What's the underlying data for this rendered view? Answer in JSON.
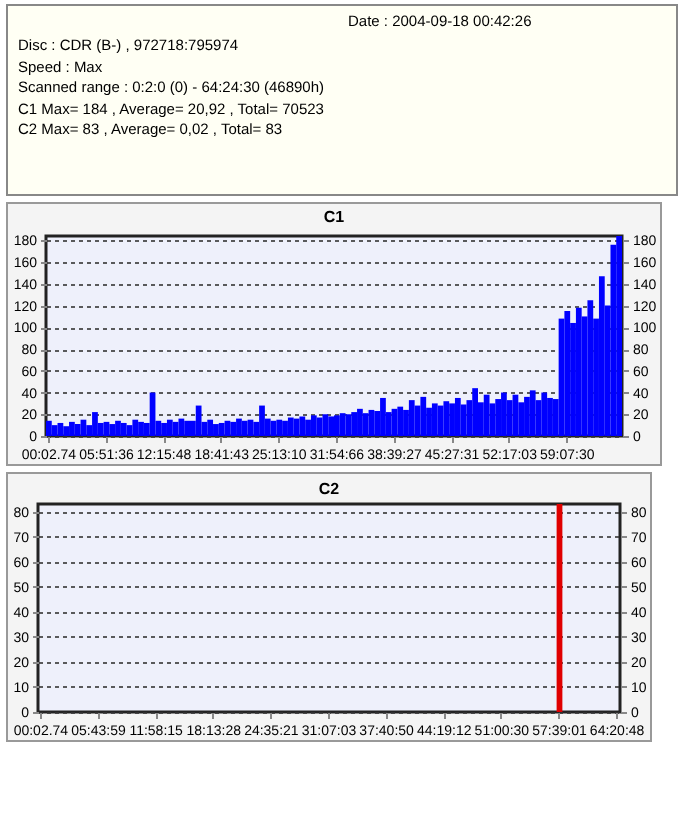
{
  "chart_data": [
    {
      "type": "bar",
      "title": "C1",
      "annotations": [
        "Date : 2004-09-18 00:42:26",
        "Disc : CDR (B-) , 972718:795974",
        "Speed : Max",
        "Scanned range : 0:2:0 (0) - 64:24:30 (46890h)",
        "C1 Max= 184 , Average= 20,92 , Total= 70523",
        "C2 Max= 83 , Average= 0,02 , Total= 83"
      ],
      "categories": [
        "00:02.74",
        null,
        null,
        null,
        null,
        null,
        null,
        null,
        null,
        null,
        "05:51:36",
        null,
        null,
        null,
        null,
        null,
        null,
        null,
        null,
        null,
        "12:15:48",
        null,
        null,
        null,
        null,
        null,
        null,
        null,
        null,
        null,
        "18:41:43",
        null,
        null,
        null,
        null,
        null,
        null,
        null,
        null,
        null,
        "25:13:10",
        null,
        null,
        null,
        null,
        null,
        null,
        null,
        null,
        null,
        "31:54:66",
        null,
        null,
        null,
        null,
        null,
        null,
        null,
        null,
        null,
        "38:39:27",
        null,
        null,
        null,
        null,
        null,
        null,
        null,
        null,
        null,
        "45:27:31",
        null,
        null,
        null,
        null,
        null,
        null,
        null,
        null,
        null,
        "52:17:03",
        null,
        null,
        null,
        null,
        null,
        null,
        null,
        null,
        null,
        "59:07:30",
        null,
        null,
        null,
        null,
        null,
        null,
        null,
        null,
        null
      ],
      "values": [
        14,
        10,
        12,
        9,
        13,
        11,
        15,
        10,
        22,
        12,
        13,
        11,
        14,
        12,
        10,
        15,
        13,
        12,
        40,
        14,
        12,
        15,
        13,
        16,
        14,
        14,
        28,
        13,
        15,
        11,
        12,
        14,
        13,
        16,
        14,
        15,
        13,
        28,
        16,
        14,
        15,
        14,
        17,
        16,
        18,
        15,
        19,
        17,
        20,
        18,
        19,
        21,
        20,
        22,
        25,
        21,
        24,
        23,
        35,
        22,
        25,
        27,
        24,
        33,
        28,
        36,
        26,
        30,
        28,
        32,
        30,
        35,
        29,
        33,
        44,
        31,
        38,
        30,
        34,
        40,
        33,
        38,
        31,
        36,
        42,
        33,
        40,
        35,
        34,
        108,
        115,
        104,
        118,
        110,
        125,
        108,
        147,
        120,
        176,
        184
      ],
      "color": "#0000ff",
      "ylim": [
        0,
        184
      ],
      "yticks": [
        0,
        20,
        40,
        60,
        80,
        100,
        120,
        140,
        160,
        180
      ],
      "y2lim": [
        0,
        184
      ],
      "y2ticks": [
        0,
        20,
        40,
        60,
        80,
        100,
        120,
        140,
        160,
        180
      ],
      "grid": true
    },
    {
      "type": "bar",
      "title": "C2",
      "categories": [
        "00:02.74",
        null,
        null,
        null,
        null,
        null,
        null,
        null,
        null,
        null,
        "05:43:59",
        null,
        null,
        null,
        null,
        null,
        null,
        null,
        null,
        null,
        "11:58:15",
        null,
        null,
        null,
        null,
        null,
        null,
        null,
        null,
        null,
        "18:13:28",
        null,
        null,
        null,
        null,
        null,
        null,
        null,
        null,
        null,
        "24:35:21",
        null,
        null,
        null,
        null,
        null,
        null,
        null,
        null,
        null,
        "31:07:03",
        null,
        null,
        null,
        null,
        null,
        null,
        null,
        null,
        null,
        "37:40:50",
        null,
        null,
        null,
        null,
        null,
        null,
        null,
        null,
        null,
        "44:19:12",
        null,
        null,
        null,
        null,
        null,
        null,
        null,
        null,
        null,
        "51:00:30",
        null,
        null,
        null,
        null,
        null,
        null,
        null,
        null,
        null,
        "57:39:01",
        null,
        null,
        null,
        null,
        null,
        null,
        null,
        null,
        null,
        "64:20:48"
      ],
      "values": [
        0,
        0,
        0,
        0,
        0,
        0,
        0,
        0,
        0,
        0,
        0,
        0,
        0,
        0,
        0,
        0,
        0,
        0,
        0,
        0,
        0,
        0,
        0,
        0,
        0,
        0,
        0,
        0,
        0,
        0,
        0,
        0,
        0,
        0,
        0,
        0,
        0,
        0,
        0,
        0,
        0,
        0,
        0,
        0,
        0,
        0,
        0,
        0,
        0,
        0,
        0,
        0,
        0,
        0,
        0,
        0,
        0,
        0,
        0,
        0,
        0,
        0,
        0,
        0,
        0,
        0,
        0,
        0,
        0,
        0,
        0,
        0,
        0,
        0,
        0,
        0,
        0,
        0,
        0,
        0,
        0,
        0,
        0,
        0,
        0,
        0,
        0,
        0,
        0,
        0,
        83,
        0,
        0,
        0,
        0,
        0,
        0,
        0,
        0,
        0,
        0
      ],
      "color": "#e00000",
      "ylim": [
        0,
        83
      ],
      "yticks": [
        0,
        10,
        20,
        30,
        40,
        50,
        60,
        70,
        80
      ],
      "y2lim": [
        0,
        83
      ],
      "y2ticks": [
        0,
        10,
        20,
        30,
        40,
        50,
        60,
        70,
        80
      ],
      "grid": true
    }
  ]
}
